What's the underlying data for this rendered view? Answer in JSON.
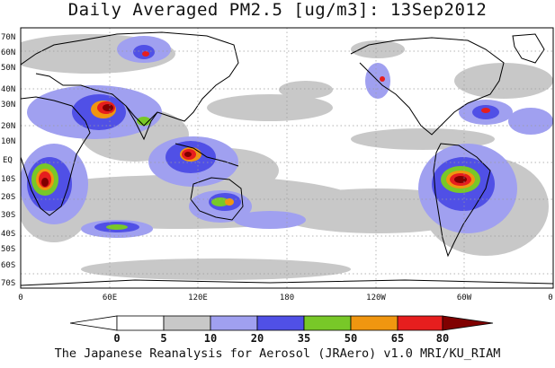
{
  "title": "Daily Averaged PM2.5 [ug/m3]: 13Sep2012",
  "credit": "The Japanese Reanalysis for Aerosol (JRAero) v1.0 MRI/KU_RIAM",
  "lat_labels": [
    "70N",
    "60N",
    "50N",
    "40N",
    "30N",
    "20N",
    "10N",
    "EQ",
    "10S",
    "20S",
    "30S",
    "40S",
    "50S",
    "60S",
    "70S"
  ],
  "lon_labels": [
    "0",
    "60E",
    "120E",
    "180",
    "120W",
    "60W",
    "0"
  ],
  "colorbar": {
    "labels": [
      "0",
      "5",
      "10",
      "20",
      "35",
      "50",
      "65",
      "80"
    ],
    "colors": [
      "#ffffff",
      "#c8c8c8",
      "#a0a0f0",
      "#5050e6",
      "#78c828",
      "#f09610",
      "#e61e1e",
      "#800000"
    ]
  },
  "colors": {
    "land_outline": "#000000",
    "ocean": "#ffffff",
    "grid": "#9a9a9a"
  }
}
